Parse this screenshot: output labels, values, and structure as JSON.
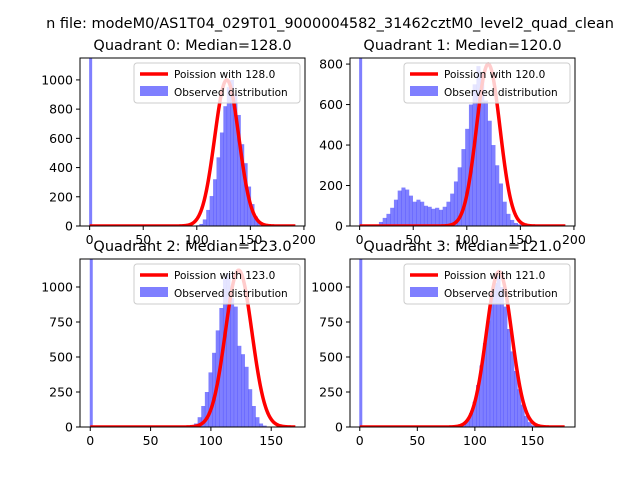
{
  "figure": {
    "suptitle": "n file: modeM0/AS1T04_029T01_9000004582_31462cztM0_level2_quad_clean"
  },
  "colors": {
    "hist": "#0000ff",
    "curve": "#ff0000",
    "axis": "#000000",
    "background": "#ffffff"
  },
  "chart_data": [
    {
      "type": "bar",
      "title": "Quadrant 0: Median=128.0",
      "xlim": [
        -9,
        201
      ],
      "ylim": [
        0,
        1150
      ],
      "xticks": [
        0,
        50,
        100,
        150,
        200
      ],
      "yticks": [
        0,
        200,
        400,
        600,
        800,
        1000
      ],
      "legend": {
        "position": "top-right",
        "line_label": "Poission with 128.0",
        "hist_label": "Observed distribution"
      },
      "spike": {
        "x": 0,
        "value": 1150
      },
      "bins": {
        "start": 96,
        "width": 3.2,
        "values": [
          3,
          5,
          14,
          45,
          110,
          205,
          320,
          470,
          640,
          820,
          950,
          1000,
          905,
          760,
          560,
          430,
          270,
          150,
          65,
          25,
          8,
          3
        ]
      },
      "curve": {
        "mean": 128,
        "sigma": 11.3,
        "peak": 1000,
        "xmin": 0,
        "xmax": 192
      }
    },
    {
      "type": "bar",
      "title": "Quadrant 1: Median=120.0",
      "xlim": [
        -9,
        201
      ],
      "ylim": [
        0,
        830
      ],
      "xticks": [
        0,
        50,
        100,
        150,
        200
      ],
      "yticks": [
        0,
        200,
        400,
        600,
        800
      ],
      "legend": {
        "position": "top-right",
        "line_label": "Poission with 120.0",
        "hist_label": "Observed distribution"
      },
      "spike": {
        "x": 0,
        "value": 830
      },
      "bins": {
        "start": 18,
        "width": 3.5,
        "values": [
          20,
          40,
          60,
          90,
          130,
          175,
          190,
          180,
          150,
          120,
          130,
          120,
          100,
          95,
          85,
          90,
          80,
          95,
          120,
          160,
          220,
          290,
          380,
          480,
          600,
          700,
          790,
          750,
          620,
          520,
          400,
          300,
          210,
          120,
          60,
          30,
          15,
          8
        ]
      },
      "curve": {
        "mean": 120,
        "sigma": 11,
        "peak": 800,
        "xmin": 0,
        "xmax": 192
      }
    },
    {
      "type": "bar",
      "title": "Quadrant 2: Median=123.0",
      "xlim": [
        -8.5,
        178
      ],
      "ylim": [
        0,
        1200
      ],
      "xticks": [
        0,
        50,
        100,
        150
      ],
      "yticks": [
        0,
        250,
        500,
        750,
        1000
      ],
      "legend": {
        "position": "top-right",
        "line_label": "Poission with 123.0",
        "hist_label": "Observed distribution"
      },
      "spike": {
        "x": 0,
        "value": 1200
      },
      "bins": {
        "start": 80,
        "width": 3,
        "values": [
          8,
          15,
          25,
          70,
          150,
          250,
          390,
          530,
          690,
          850,
          1060,
          1100,
          920,
          860,
          580,
          520,
          430,
          270,
          150,
          70,
          25,
          10
        ]
      },
      "curve": {
        "mean": 123,
        "sigma": 11,
        "peak": 1120,
        "xmin": 0,
        "xmax": 170
      }
    },
    {
      "type": "bar",
      "title": "Quadrant 3: Median=121.0",
      "xlim": [
        -8.5,
        187
      ],
      "ylim": [
        0,
        1200
      ],
      "xticks": [
        0,
        50,
        100,
        150
      ],
      "yticks": [
        0,
        250,
        500,
        750,
        1000
      ],
      "legend": {
        "position": "top-right",
        "line_label": "Poission with 121.0",
        "hist_label": "Observed distribution"
      },
      "spike": {
        "x": 0,
        "value": 1200
      },
      "bins": {
        "start": 86,
        "width": 3,
        "values": [
          10,
          20,
          45,
          100,
          180,
          300,
          440,
          600,
          760,
          920,
          1030,
          1080,
          1000,
          860,
          700,
          540,
          400,
          270,
          160,
          80,
          35,
          12
        ]
      },
      "curve": {
        "mean": 121,
        "sigma": 11,
        "peak": 1110,
        "xmin": 0,
        "xmax": 178
      }
    }
  ]
}
